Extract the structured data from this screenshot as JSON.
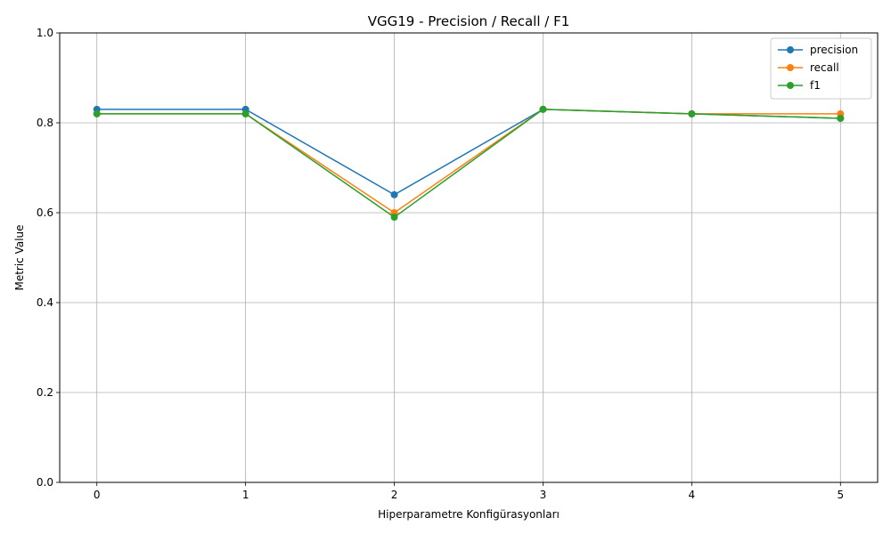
{
  "chart_data": {
    "type": "line",
    "title": "VGG19 - Precision / Recall / F1",
    "xlabel": "Hiperparametre Konfigürasyonları",
    "ylabel": "Metric Value",
    "x": [
      0,
      1,
      2,
      3,
      4,
      5
    ],
    "x_ticks": [
      "0",
      "1",
      "2",
      "3",
      "4",
      "5"
    ],
    "y_ticks": [
      "0.0",
      "0.2",
      "0.4",
      "0.6",
      "0.8",
      "1.0"
    ],
    "xlim": [
      -0.25,
      5.25
    ],
    "ylim": [
      0,
      1
    ],
    "grid": true,
    "legend_position": "top-right",
    "series": [
      {
        "name": "precision",
        "color": "#1f77b4",
        "values": [
          0.83,
          0.83,
          0.64,
          0.83,
          0.82,
          0.81
        ]
      },
      {
        "name": "recall",
        "color": "#ff7f0e",
        "values": [
          0.82,
          0.82,
          0.6,
          0.83,
          0.82,
          0.82
        ]
      },
      {
        "name": "f1",
        "color": "#2ca02c",
        "values": [
          0.82,
          0.82,
          0.59,
          0.83,
          0.82,
          0.81
        ]
      }
    ]
  }
}
